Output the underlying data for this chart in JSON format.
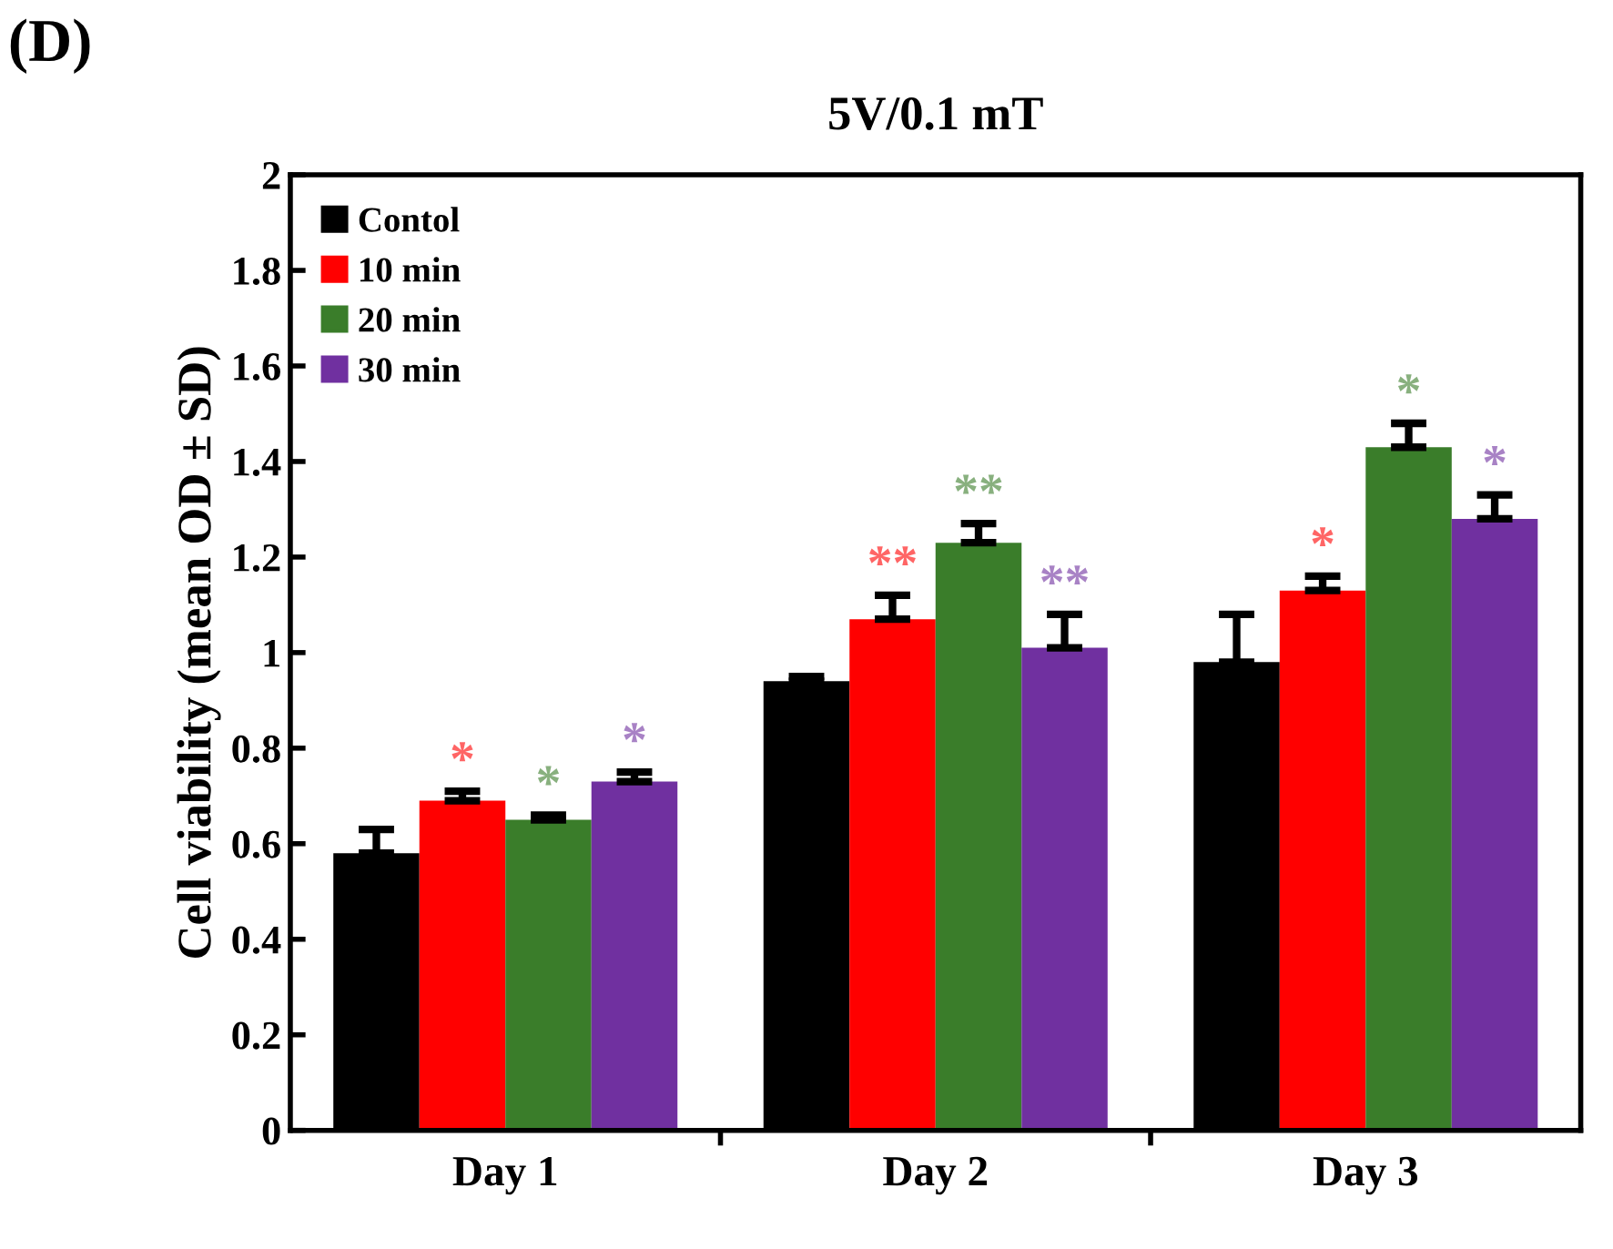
{
  "chart_data": {
    "type": "bar",
    "title": "5V/0.1 mT",
    "ylabel": "Cell viability (mean OD ± SD)",
    "annotations": [
      "(D)"
    ],
    "categories": [
      "Day 1",
      "Day 2",
      "Day 3"
    ],
    "series": [
      {
        "name": "Contol",
        "color": "#000000",
        "values": [
          0.58,
          0.94,
          0.98
        ],
        "errors": [
          [
            0.58,
            0.63
          ],
          [
            0.94,
            0.95
          ],
          [
            0.98,
            1.08
          ]
        ],
        "value_labels": [
          null,
          null,
          null
        ]
      },
      {
        "name": "10 min",
        "color": "#ff0000",
        "values": [
          0.69,
          1.07,
          1.13
        ],
        "errors": [
          [
            0.69,
            0.71
          ],
          [
            1.07,
            1.12
          ],
          [
            1.13,
            1.16
          ]
        ],
        "value_labels": [
          "*",
          "**",
          "*"
        ]
      },
      {
        "name": "20 min",
        "color": "#3a7d2a",
        "values": [
          0.65,
          1.23,
          1.43
        ],
        "errors": [
          [
            0.65,
            0.66
          ],
          [
            1.23,
            1.27
          ],
          [
            1.43,
            1.48
          ]
        ],
        "value_labels": [
          "*",
          "**",
          "*"
        ]
      },
      {
        "name": "30 min",
        "color": "#7030a0",
        "values": [
          0.73,
          1.01,
          1.28
        ],
        "errors": [
          [
            0.73,
            0.75
          ],
          [
            1.01,
            1.08
          ],
          [
            1.28,
            1.33
          ]
        ],
        "value_labels": [
          "*",
          "**",
          "*"
        ]
      }
    ],
    "ylim": [
      0,
      2
    ],
    "yticks": [
      0,
      0.2,
      0.4,
      0.6,
      0.8,
      1,
      1.2,
      1.4,
      1.6,
      1.8,
      2
    ],
    "grid": false,
    "legend": "top left"
  }
}
